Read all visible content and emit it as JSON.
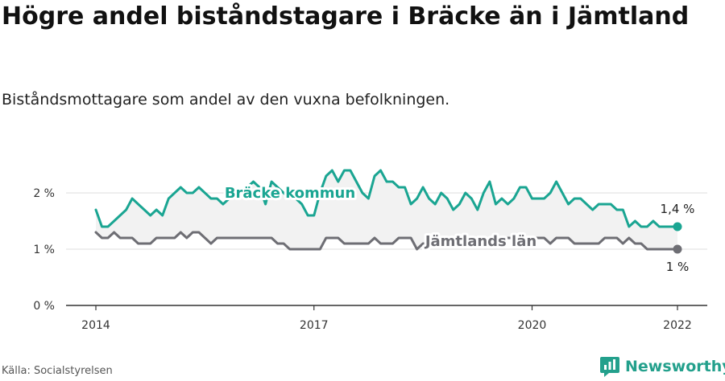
{
  "header": {
    "title": "Högre andel biståndstagare i Bräcke än i Jämtland",
    "subtitle": "Biståndsmottagare som andel av den vuxna befolkningen."
  },
  "footer": {
    "source": "Källa: Socialstyrelsen",
    "brand": "Newsworthy"
  },
  "colors": {
    "bracke": "#1aa592",
    "jamtland": "#6e6e74",
    "band": "#f2f2f2",
    "grid": "#dddddd",
    "brand": "#23a08c"
  },
  "chart_data": {
    "type": "line",
    "title": "Högre andel biståndstagare i Bräcke än i Jämtland",
    "subtitle": "Biståndsmottagare som andel av den vuxna befolkningen.",
    "x_axis": {
      "ticks": [
        "2014",
        "2017",
        "2020",
        "2022"
      ],
      "range": [
        "2014-01",
        "2022-01"
      ]
    },
    "y_axis": {
      "ticks": [
        "0 %",
        "1 %",
        "2 %"
      ],
      "range": [
        0,
        2.5
      ],
      "unit": "%"
    },
    "grid": true,
    "x": [
      "2014-01",
      "2014-02",
      "2014-03",
      "2014-04",
      "2014-05",
      "2014-06",
      "2014-07",
      "2014-08",
      "2014-09",
      "2014-10",
      "2014-11",
      "2014-12",
      "2015-01",
      "2015-02",
      "2015-03",
      "2015-04",
      "2015-05",
      "2015-06",
      "2015-07",
      "2015-08",
      "2015-09",
      "2015-10",
      "2015-11",
      "2015-12",
      "2016-01",
      "2016-02",
      "2016-03",
      "2016-04",
      "2016-05",
      "2016-06",
      "2016-07",
      "2016-08",
      "2016-09",
      "2016-10",
      "2016-11",
      "2016-12",
      "2017-01",
      "2017-02",
      "2017-03",
      "2017-04",
      "2017-05",
      "2017-06",
      "2017-07",
      "2017-08",
      "2017-09",
      "2017-10",
      "2017-11",
      "2017-12",
      "2018-01",
      "2018-02",
      "2018-03",
      "2018-04",
      "2018-05",
      "2018-06",
      "2018-07",
      "2018-08",
      "2018-09",
      "2018-10",
      "2018-11",
      "2018-12",
      "2019-01",
      "2019-02",
      "2019-03",
      "2019-04",
      "2019-05",
      "2019-06",
      "2019-07",
      "2019-08",
      "2019-09",
      "2019-10",
      "2019-11",
      "2019-12",
      "2020-01",
      "2020-02",
      "2020-03",
      "2020-04",
      "2020-05",
      "2020-06",
      "2020-07",
      "2020-08",
      "2020-09",
      "2020-10",
      "2020-11",
      "2020-12",
      "2021-01",
      "2021-02",
      "2021-03",
      "2021-04",
      "2021-05",
      "2021-06",
      "2021-07",
      "2021-08",
      "2021-09",
      "2021-10",
      "2021-11",
      "2021-12",
      "2022-01"
    ],
    "series": [
      {
        "name": "Bräcke kommun",
        "color": "#1aa592",
        "end_label": "1,4 %",
        "values": [
          1.7,
          1.4,
          1.4,
          1.5,
          1.6,
          1.7,
          1.9,
          1.8,
          1.7,
          1.6,
          1.7,
          1.6,
          1.9,
          2.0,
          2.1,
          2.0,
          2.0,
          2.1,
          2.0,
          1.9,
          1.9,
          1.8,
          1.9,
          2.0,
          2.0,
          2.1,
          2.2,
          2.1,
          1.8,
          2.2,
          2.1,
          2.0,
          1.9,
          1.9,
          1.8,
          1.6,
          1.6,
          2.0,
          2.3,
          2.4,
          2.2,
          2.4,
          2.4,
          2.2,
          2.0,
          1.9,
          2.3,
          2.4,
          2.2,
          2.2,
          2.1,
          2.1,
          1.8,
          1.9,
          2.1,
          1.9,
          1.8,
          2.0,
          1.9,
          1.7,
          1.8,
          2.0,
          1.9,
          1.7,
          2.0,
          2.2,
          1.8,
          1.9,
          1.8,
          1.9,
          2.1,
          2.1,
          1.9,
          1.9,
          1.9,
          2.0,
          2.2,
          2.0,
          1.8,
          1.9,
          1.9,
          1.8,
          1.7,
          1.8,
          1.8,
          1.8,
          1.7,
          1.7,
          1.4,
          1.5,
          1.4,
          1.4,
          1.5,
          1.4,
          1.4,
          1.4,
          1.4
        ]
      },
      {
        "name": "Jämtlands län",
        "color": "#6e6e74",
        "end_label": "1 %",
        "values": [
          1.3,
          1.2,
          1.2,
          1.3,
          1.2,
          1.2,
          1.2,
          1.1,
          1.1,
          1.1,
          1.2,
          1.2,
          1.2,
          1.2,
          1.3,
          1.2,
          1.3,
          1.3,
          1.2,
          1.1,
          1.2,
          1.2,
          1.2,
          1.2,
          1.2,
          1.2,
          1.2,
          1.2,
          1.2,
          1.2,
          1.1,
          1.1,
          1.0,
          1.0,
          1.0,
          1.0,
          1.0,
          1.0,
          1.2,
          1.2,
          1.2,
          1.1,
          1.1,
          1.1,
          1.1,
          1.1,
          1.2,
          1.1,
          1.1,
          1.1,
          1.2,
          1.2,
          1.2,
          1.0,
          1.1,
          1.1,
          1.2,
          1.1,
          1.1,
          1.1,
          1.1,
          1.2,
          1.2,
          1.1,
          1.1,
          1.2,
          1.2,
          1.2,
          1.2,
          1.2,
          1.2,
          1.2,
          1.2,
          1.2,
          1.2,
          1.1,
          1.2,
          1.2,
          1.2,
          1.1,
          1.1,
          1.1,
          1.1,
          1.1,
          1.2,
          1.2,
          1.2,
          1.1,
          1.2,
          1.1,
          1.1,
          1.0,
          1.0,
          1.0,
          1.0,
          1.0,
          1.0
        ]
      }
    ]
  }
}
